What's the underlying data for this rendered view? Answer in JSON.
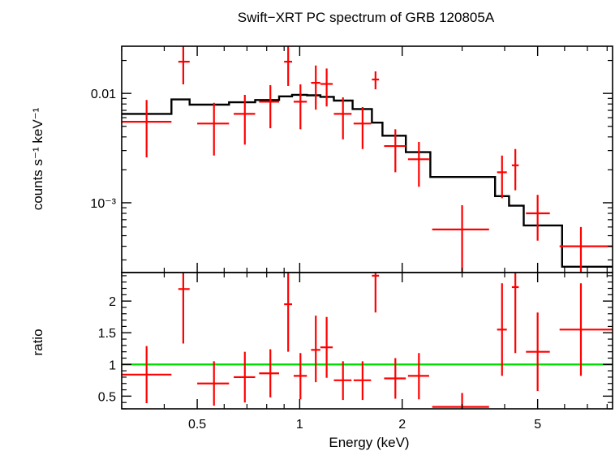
{
  "chart_data": {
    "type": "scatter",
    "title": "Swift−XRT PC spectrum of GRB 120805A",
    "xlabel": "Energy (keV)",
    "xscale": "log",
    "xlim": [
      0.3,
      8.3
    ],
    "x_ticks": [
      {
        "value": 0.5,
        "label": "0.5"
      },
      {
        "value": 1,
        "label": "1"
      },
      {
        "value": 2,
        "label": "2"
      },
      {
        "value": 5,
        "label": "5"
      }
    ],
    "panels": [
      {
        "name": "spectrum",
        "ylabel": "counts s⁻¹ keV⁻¹",
        "yscale": "log",
        "ylim": [
          0.00023,
          0.027
        ],
        "y_ticks": [
          {
            "value": 0.01,
            "label": "0.01"
          },
          {
            "value": 0.001,
            "label": "10⁻³"
          }
        ],
        "series": [
          {
            "role": "data",
            "color": "#ff0000",
            "points": [
              {
                "x": 0.355,
                "xlo": 0.3,
                "xhi": 0.42,
                "y": 0.0055,
                "ylo": 0.0026,
                "yhi": 0.0087
              },
              {
                "x": 0.455,
                "xlo": 0.44,
                "xhi": 0.475,
                "y": 0.0195,
                "ylo": 0.0121,
                "yhi": 0.029
              },
              {
                "x": 0.56,
                "xlo": 0.5,
                "xhi": 0.62,
                "y": 0.0053,
                "ylo": 0.0027,
                "yhi": 0.0082
              },
              {
                "x": 0.69,
                "xlo": 0.64,
                "xhi": 0.74,
                "y": 0.0065,
                "ylo": 0.0034,
                "yhi": 0.0097
              },
              {
                "x": 0.82,
                "xlo": 0.76,
                "xhi": 0.87,
                "y": 0.0084,
                "ylo": 0.0048,
                "yhi": 0.0119
              },
              {
                "x": 0.925,
                "xlo": 0.9,
                "xhi": 0.95,
                "y": 0.0195,
                "ylo": 0.0117,
                "yhi": 0.029
              },
              {
                "x": 1.005,
                "xlo": 0.96,
                "xhi": 1.05,
                "y": 0.0084,
                "ylo": 0.0047,
                "yhi": 0.0121
              },
              {
                "x": 1.115,
                "xlo": 1.08,
                "xhi": 1.15,
                "y": 0.0125,
                "ylo": 0.0071,
                "yhi": 0.018
              },
              {
                "x": 1.2,
                "xlo": 1.15,
                "xhi": 1.25,
                "y": 0.0122,
                "ylo": 0.0076,
                "yhi": 0.0169
              },
              {
                "x": 1.34,
                "xlo": 1.26,
                "xhi": 1.42,
                "y": 0.0065,
                "ylo": 0.0038,
                "yhi": 0.0092
              },
              {
                "x": 1.53,
                "xlo": 1.44,
                "xhi": 1.62,
                "y": 0.0053,
                "ylo": 0.0031,
                "yhi": 0.0075
              },
              {
                "x": 1.67,
                "xlo": 1.63,
                "xhi": 1.71,
                "y": 0.0134,
                "ylo": 0.0109,
                "yhi": 0.0159
              },
              {
                "x": 1.91,
                "xlo": 1.77,
                "xhi": 2.05,
                "y": 0.0033,
                "ylo": 0.0019,
                "yhi": 0.0047
              },
              {
                "x": 2.24,
                "xlo": 2.08,
                "xhi": 2.4,
                "y": 0.0025,
                "ylo": 0.0014,
                "yhi": 0.0036
              },
              {
                "x": 3.0,
                "xlo": 2.45,
                "xhi": 3.6,
                "y": 0.00057,
                "ylo": 0.00023,
                "yhi": 0.00095
              },
              {
                "x": 3.93,
                "xlo": 3.8,
                "xhi": 4.06,
                "y": 0.0019,
                "ylo": 0.0011,
                "yhi": 0.0027
              },
              {
                "x": 4.3,
                "xlo": 4.2,
                "xhi": 4.4,
                "y": 0.0022,
                "ylo": 0.0013,
                "yhi": 0.0031
              },
              {
                "x": 5.0,
                "xlo": 4.62,
                "xhi": 5.43,
                "y": 0.0008,
                "ylo": 0.00045,
                "yhi": 0.00118
              },
              {
                "x": 6.7,
                "xlo": 5.8,
                "xhi": 8.3,
                "y": 0.0004,
                "ylo": 0.00023,
                "yhi": 0.0006
              }
            ]
          },
          {
            "role": "model",
            "color": "#000000",
            "steps": [
              {
                "x0": 0.3,
                "x1": 0.42,
                "y": 0.0065
              },
              {
                "x0": 0.42,
                "x1": 0.475,
                "y": 0.0088
              },
              {
                "x0": 0.475,
                "x1": 0.62,
                "y": 0.0079
              },
              {
                "x0": 0.62,
                "x1": 0.74,
                "y": 0.0083
              },
              {
                "x0": 0.74,
                "x1": 0.87,
                "y": 0.0087
              },
              {
                "x0": 0.87,
                "x1": 0.95,
                "y": 0.0094
              },
              {
                "x0": 0.95,
                "x1": 1.05,
                "y": 0.0097
              },
              {
                "x0": 1.05,
                "x1": 1.15,
                "y": 0.0096
              },
              {
                "x0": 1.15,
                "x1": 1.26,
                "y": 0.0093
              },
              {
                "x0": 1.26,
                "x1": 1.43,
                "y": 0.0086
              },
              {
                "x0": 1.43,
                "x1": 1.63,
                "y": 0.0072
              },
              {
                "x0": 1.63,
                "x1": 1.75,
                "y": 0.0054
              },
              {
                "x0": 1.75,
                "x1": 2.05,
                "y": 0.0041
              },
              {
                "x0": 2.05,
                "x1": 2.42,
                "y": 0.0029
              },
              {
                "x0": 2.42,
                "x1": 3.75,
                "y": 0.00172
              },
              {
                "x0": 3.75,
                "x1": 4.12,
                "y": 0.00115
              },
              {
                "x0": 4.12,
                "x1": 4.55,
                "y": 0.00094
              },
              {
                "x0": 4.55,
                "x1": 5.9,
                "y": 0.00062
              },
              {
                "x0": 5.9,
                "x1": 8.3,
                "y": 0.00026
              }
            ]
          }
        ]
      },
      {
        "name": "ratio",
        "ylabel": "ratio",
        "yscale": "linear",
        "ylim": [
          0.3,
          2.45
        ],
        "y_ticks": [
          {
            "value": 0.5,
            "label": "0.5"
          },
          {
            "value": 1,
            "label": "1"
          },
          {
            "value": 1.5,
            "label": "1.5"
          },
          {
            "value": 2,
            "label": "2"
          }
        ],
        "reference_line": {
          "y": 1,
          "color": "#00dd00"
        },
        "series": [
          {
            "role": "data",
            "color": "#ff0000",
            "points": [
              {
                "x": 0.355,
                "xlo": 0.3,
                "xhi": 0.42,
                "y": 0.84,
                "ylo": 0.39,
                "yhi": 1.29
              },
              {
                "x": 0.455,
                "xlo": 0.44,
                "xhi": 0.475,
                "y": 2.19,
                "ylo": 1.33,
                "yhi": 3.0
              },
              {
                "x": 0.56,
                "xlo": 0.5,
                "xhi": 0.62,
                "y": 0.7,
                "ylo": 0.35,
                "yhi": 1.05
              },
              {
                "x": 0.69,
                "xlo": 0.64,
                "xhi": 0.74,
                "y": 0.8,
                "ylo": 0.4,
                "yhi": 1.2
              },
              {
                "x": 0.82,
                "xlo": 0.76,
                "xhi": 0.87,
                "y": 0.86,
                "ylo": 0.48,
                "yhi": 1.24
              },
              {
                "x": 0.925,
                "xlo": 0.9,
                "xhi": 0.95,
                "y": 1.95,
                "ylo": 1.2,
                "yhi": 3.0
              },
              {
                "x": 1.005,
                "xlo": 0.96,
                "xhi": 1.05,
                "y": 0.82,
                "ylo": 0.45,
                "yhi": 1.18
              },
              {
                "x": 1.115,
                "xlo": 1.08,
                "xhi": 1.15,
                "y": 1.23,
                "ylo": 0.72,
                "yhi": 1.77
              },
              {
                "x": 1.2,
                "xlo": 1.15,
                "xhi": 1.25,
                "y": 1.27,
                "ylo": 0.79,
                "yhi": 1.75
              },
              {
                "x": 1.34,
                "xlo": 1.26,
                "xhi": 1.42,
                "y": 0.75,
                "ylo": 0.44,
                "yhi": 1.05
              },
              {
                "x": 1.53,
                "xlo": 1.44,
                "xhi": 1.62,
                "y": 0.75,
                "ylo": 0.44,
                "yhi": 1.05
              },
              {
                "x": 1.67,
                "xlo": 1.63,
                "xhi": 1.71,
                "y": 2.4,
                "ylo": 1.82,
                "yhi": 3.0
              },
              {
                "x": 1.91,
                "xlo": 1.77,
                "xhi": 2.05,
                "y": 0.78,
                "ylo": 0.46,
                "yhi": 1.1
              },
              {
                "x": 2.24,
                "xlo": 2.08,
                "xhi": 2.4,
                "y": 0.82,
                "ylo": 0.45,
                "yhi": 1.18
              },
              {
                "x": 3.0,
                "xlo": 2.45,
                "xhi": 3.6,
                "y": 0.33,
                "ylo": 0.25,
                "yhi": 0.55
              },
              {
                "x": 3.93,
                "xlo": 3.8,
                "xhi": 4.06,
                "y": 1.55,
                "ylo": 0.82,
                "yhi": 2.28
              },
              {
                "x": 4.3,
                "xlo": 4.2,
                "xhi": 4.4,
                "y": 2.22,
                "ylo": 1.18,
                "yhi": 3.0
              },
              {
                "x": 5.0,
                "xlo": 4.62,
                "xhi": 5.43,
                "y": 1.2,
                "ylo": 0.58,
                "yhi": 1.82
              },
              {
                "x": 6.7,
                "xlo": 5.8,
                "xhi": 8.3,
                "y": 1.55,
                "ylo": 0.82,
                "yhi": 2.28
              }
            ]
          }
        ]
      }
    ]
  }
}
